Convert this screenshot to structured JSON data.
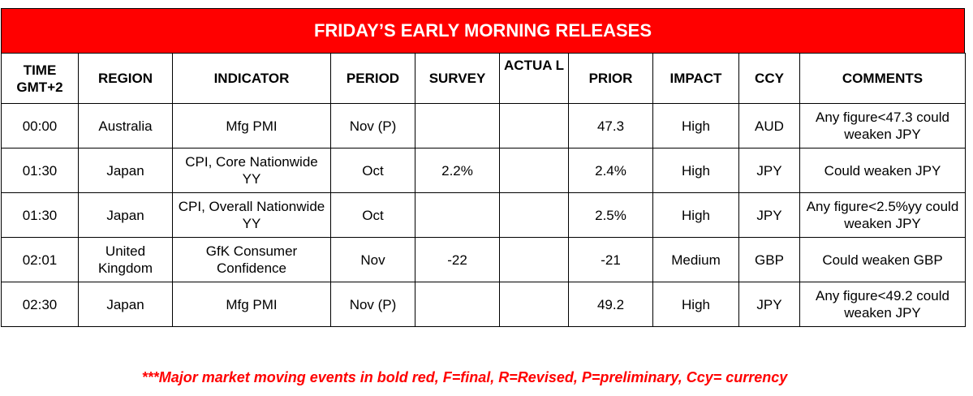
{
  "banner": {
    "title": "FRIDAY’S EARLY MORNING RELEASES"
  },
  "headers": [
    "TIME GMT+2",
    "REGION",
    "INDICATOR",
    "PERIOD",
    "SURVEY",
    "ACTUA L",
    "PRIOR",
    "IMPACT",
    "CCY",
    "COMMENTS"
  ],
  "rows": [
    [
      "00:00",
      "Australia",
      "Mfg PMI",
      "Nov (P)",
      "",
      "",
      "47.3",
      "High",
      "AUD",
      "Any figure<47.3 could weaken JPY"
    ],
    [
      "01:30",
      "Japan",
      "CPI, Core Nationwide YY",
      "Oct",
      "2.2%",
      "",
      "2.4%",
      "High",
      "JPY",
      "Could weaken JPY"
    ],
    [
      "01:30",
      "Japan",
      "CPI, Overall Nationwide YY",
      "Oct",
      "",
      "",
      "2.5%",
      "High",
      "JPY",
      "Any figure<2.5%yy could weaken JPY"
    ],
    [
      "02:01",
      "United Kingdom",
      "GfK Consumer Confidence",
      "Nov",
      "-22",
      "",
      "-21",
      "Medium",
      "GBP",
      "Could weaken GBP"
    ],
    [
      "02:30",
      "Japan",
      "Mfg PMI",
      "Nov (P)",
      "",
      "",
      "49.2",
      "High",
      "JPY",
      "Any figure<49.2 could weaken JPY"
    ]
  ],
  "footnote": "***Major market moving events in bold red, F=final, R=Revised, P=preliminary, Ccy= currency",
  "colors": {
    "banner": "#ff0000",
    "footnote": "#ff0000"
  }
}
